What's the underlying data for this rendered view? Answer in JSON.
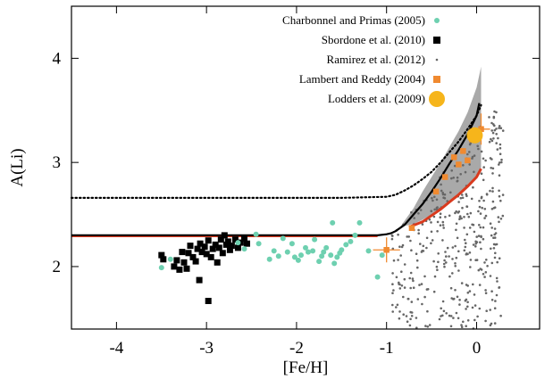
{
  "chart_data": {
    "type": "scatter",
    "xlabel": "[Fe/H]",
    "ylabel": "A(Li)",
    "xlim": [
      -4.5,
      0.7
    ],
    "ylim": [
      1.4,
      4.5
    ],
    "x_ticks": [
      -4,
      -3,
      -2,
      -1,
      0
    ],
    "y_ticks": [
      2,
      3,
      4
    ],
    "x_tick_labels": [
      "-4",
      "-3",
      "-2",
      "-1",
      "0"
    ],
    "y_tick_labels": [
      "2",
      "3",
      "4"
    ],
    "grid": false,
    "legend_position": "top-right",
    "legend": [
      {
        "label": "Charbonnel and Primas (2005)",
        "color": "#6ed0b0",
        "marker": "circle"
      },
      {
        "label": "Sbordone et al. (2010)",
        "color": "#000000",
        "marker": "square"
      },
      {
        "label": "Ramirez et al. (2012)",
        "color": "#666666",
        "marker": "dot"
      },
      {
        "label": "Lambert and Reddy (2004)",
        "color": "#f08a30",
        "marker": "square"
      },
      {
        "label": "Lodders et al. (2009)",
        "color": "#f6b51b",
        "marker": "big-circle"
      }
    ],
    "series": [
      {
        "name": "Sbordone et al. (2010)",
        "color": "#000000",
        "marker": "square",
        "points": [
          [
            -3.5,
            2.11
          ],
          [
            -3.48,
            2.07
          ],
          [
            -3.36,
            2.0
          ],
          [
            -3.33,
            2.06
          ],
          [
            -3.3,
            1.97
          ],
          [
            -3.27,
            2.14
          ],
          [
            -3.25,
            2.04
          ],
          [
            -3.2,
            2.13
          ],
          [
            -3.18,
            2.2
          ],
          [
            -3.15,
            2.09
          ],
          [
            -3.12,
            2.05
          ],
          [
            -3.1,
            2.17
          ],
          [
            -3.07,
            2.22
          ],
          [
            -3.05,
            2.14
          ],
          [
            -3.02,
            2.19
          ],
          [
            -3.0,
            2.12
          ],
          [
            -2.98,
            2.25
          ],
          [
            -2.95,
            2.09
          ],
          [
            -2.93,
            2.17
          ],
          [
            -2.9,
            2.21
          ],
          [
            -2.88,
            2.04
          ],
          [
            -2.86,
            2.18
          ],
          [
            -2.84,
            2.26
          ],
          [
            -2.82,
            2.13
          ],
          [
            -2.8,
            2.3
          ],
          [
            -2.78,
            2.21
          ],
          [
            -2.76,
            2.24
          ],
          [
            -2.74,
            2.16
          ],
          [
            -2.72,
            2.2
          ],
          [
            -2.68,
            2.26
          ],
          [
            -2.65,
            2.18
          ],
          [
            -2.62,
            2.23
          ],
          [
            -2.58,
            2.27
          ],
          [
            -2.55,
            2.22
          ],
          [
            -3.08,
            1.87
          ],
          [
            -2.98,
            1.67
          ],
          [
            -3.22,
            1.98
          ]
        ]
      },
      {
        "name": "Charbonnel and Primas (2005)",
        "color": "#6ed0b0",
        "marker": "circle",
        "points": [
          [
            -3.5,
            1.99
          ],
          [
            -3.4,
            2.07
          ],
          [
            -2.65,
            2.23
          ],
          [
            -2.58,
            2.17
          ],
          [
            -2.45,
            2.31
          ],
          [
            -2.42,
            2.22
          ],
          [
            -2.3,
            2.07
          ],
          [
            -2.25,
            2.15
          ],
          [
            -2.2,
            2.1
          ],
          [
            -2.15,
            2.27
          ],
          [
            -2.1,
            2.14
          ],
          [
            -2.05,
            2.22
          ],
          [
            -2.02,
            2.09
          ],
          [
            -1.98,
            2.06
          ],
          [
            -1.95,
            2.11
          ],
          [
            -1.9,
            2.18
          ],
          [
            -1.87,
            2.14
          ],
          [
            -1.82,
            2.15
          ],
          [
            -1.8,
            2.26
          ],
          [
            -1.75,
            2.05
          ],
          [
            -1.72,
            2.1
          ],
          [
            -1.7,
            2.14
          ],
          [
            -1.67,
            2.18
          ],
          [
            -1.62,
            2.11
          ],
          [
            -1.6,
            2.42
          ],
          [
            -1.58,
            2.03
          ],
          [
            -1.55,
            2.09
          ],
          [
            -1.52,
            2.13
          ],
          [
            -1.5,
            2.16
          ],
          [
            -1.45,
            2.21
          ],
          [
            -1.4,
            2.24
          ],
          [
            -1.35,
            2.3
          ],
          [
            -1.3,
            2.42
          ],
          [
            -1.2,
            2.15
          ],
          [
            -1.1,
            1.9
          ],
          [
            -1.05,
            2.11
          ]
        ]
      },
      {
        "name": "Lambert and Reddy (2004)",
        "color": "#f08a30",
        "marker": "square",
        "points": [
          [
            -1.0,
            2.16
          ],
          [
            -0.72,
            2.37
          ],
          [
            -0.45,
            2.72
          ],
          [
            -0.35,
            2.86
          ],
          [
            -0.25,
            3.05
          ],
          [
            -0.15,
            3.11
          ],
          [
            -0.1,
            3.02
          ],
          [
            -0.05,
            3.22
          ],
          [
            0.05,
            3.32
          ],
          [
            -0.2,
            2.98
          ]
        ],
        "error_bars": [
          {
            "x": -1.0,
            "y": 2.16,
            "xerr": 0.15,
            "yerr": 0.12
          },
          {
            "x": 0.05,
            "y": 3.32,
            "xerr": 0.1,
            "yerr": 0.15
          }
        ]
      },
      {
        "name": "Lodders et al. (2009)",
        "color": "#f6b51b",
        "marker": "big-circle",
        "points": [
          [
            -0.02,
            3.26
          ]
        ]
      }
    ],
    "models": [
      {
        "name": "dotted-upper",
        "style": "dotted",
        "x": [
          -4.5,
          -3.5,
          -2.5,
          -1.5,
          -1.0,
          -0.9,
          -0.8,
          -0.7,
          -0.6,
          -0.5,
          -0.4,
          -0.3,
          -0.2,
          -0.1,
          0.0,
          0.05
        ],
        "y": [
          2.66,
          2.66,
          2.66,
          2.66,
          2.67,
          2.69,
          2.73,
          2.78,
          2.84,
          2.91,
          3.0,
          3.1,
          3.2,
          3.32,
          3.45,
          3.55
        ]
      },
      {
        "name": "solid-black",
        "style": "solid",
        "x": [
          -4.5,
          -3.0,
          -2.0,
          -1.5,
          -1.1,
          -1.0,
          -0.95,
          -0.9,
          -0.85,
          -0.8,
          -0.75,
          -0.7,
          -0.6,
          -0.5,
          -0.4,
          -0.3,
          -0.2,
          -0.1,
          0.0,
          0.03
        ],
        "y": [
          2.3,
          2.3,
          2.3,
          2.3,
          2.3,
          2.31,
          2.32,
          2.34,
          2.37,
          2.4,
          2.45,
          2.5,
          2.6,
          2.72,
          2.85,
          2.99,
          3.12,
          3.27,
          3.45,
          3.57
        ]
      },
      {
        "name": "red-line",
        "style": "solid",
        "x": [
          -0.75,
          -0.6,
          -0.5,
          -0.4,
          -0.3,
          -0.2,
          -0.1,
          0.0,
          0.05
        ],
        "y": [
          2.38,
          2.43,
          2.49,
          2.55,
          2.62,
          2.69,
          2.77,
          2.86,
          2.94
        ]
      }
    ],
    "band": {
      "name": "gray-envelope",
      "upper": {
        "x": [
          -0.85,
          -0.7,
          -0.6,
          -0.5,
          -0.4,
          -0.3,
          -0.2,
          -0.1,
          0.0,
          0.05
        ],
        "y": [
          2.38,
          2.56,
          2.72,
          2.86,
          3.0,
          3.15,
          3.3,
          3.48,
          3.72,
          3.92
        ]
      },
      "lower": {
        "x": [
          -0.85,
          -0.7,
          -0.6,
          -0.5,
          -0.4,
          -0.3,
          -0.2,
          -0.1,
          0.0,
          0.05
        ],
        "y": [
          2.38,
          2.41,
          2.45,
          2.5,
          2.56,
          2.63,
          2.7,
          2.78,
          2.87,
          2.95
        ]
      }
    },
    "scatter_cloud": {
      "name": "Ramirez et al. (2012)",
      "color": "#666666",
      "n": 650,
      "x_range": [
        -0.95,
        0.3
      ],
      "y_range": [
        1.4,
        3.75
      ]
    }
  }
}
